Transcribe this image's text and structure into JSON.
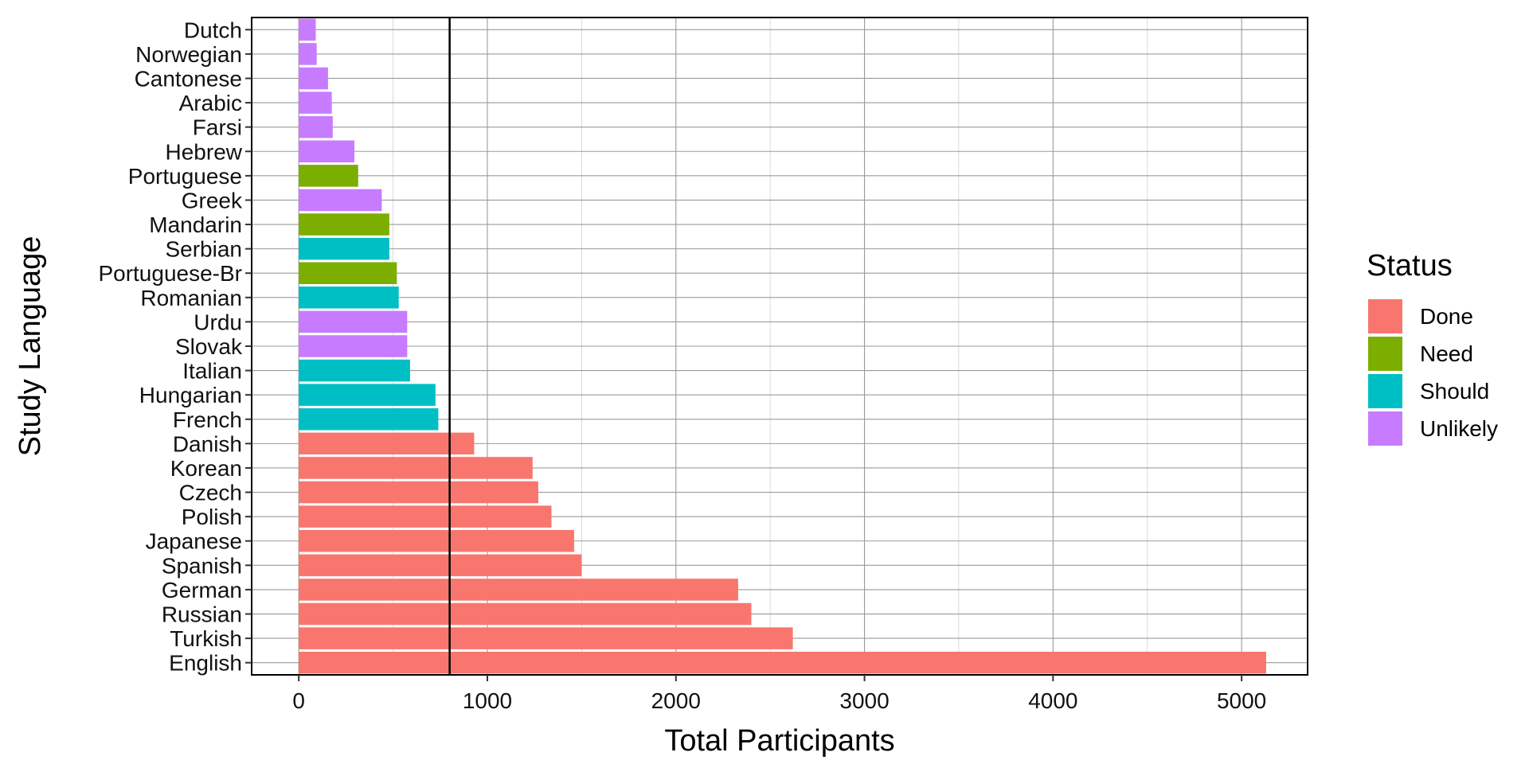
{
  "chart_data": {
    "type": "bar",
    "orientation": "horizontal",
    "xlabel": "Total Participants",
    "ylabel": "Study Language",
    "xlim": [
      -250,
      5350
    ],
    "xticks": [
      0,
      1000,
      2000,
      3000,
      4000,
      5000
    ],
    "reference_line_x": 800,
    "grid": true,
    "legend": {
      "title": "Status",
      "position": "right",
      "entries": [
        {
          "name": "Done",
          "color": "#F8766D"
        },
        {
          "name": "Need",
          "color": "#7CAE00"
        },
        {
          "name": "Should",
          "color": "#00BFC4"
        },
        {
          "name": "Unlikely",
          "color": "#C77CFF"
        }
      ]
    },
    "categories": [
      "Dutch",
      "Norwegian",
      "Cantonese",
      "Arabic",
      "Farsi",
      "Hebrew",
      "Portuguese",
      "Greek",
      "Mandarin",
      "Serbian",
      "Portuguese-Br",
      "Romanian",
      "Urdu",
      "Slovak",
      "Italian",
      "Hungarian",
      "French",
      "Danish",
      "Korean",
      "Czech",
      "Polish",
      "Japanese",
      "Spanish",
      "German",
      "Russian",
      "Turkish",
      "English"
    ],
    "values": [
      90,
      95,
      155,
      175,
      180,
      295,
      315,
      440,
      480,
      480,
      520,
      530,
      575,
      575,
      590,
      725,
      740,
      930,
      1240,
      1270,
      1340,
      1460,
      1500,
      2330,
      2400,
      2620,
      5130
    ],
    "status": [
      "Unlikely",
      "Unlikely",
      "Unlikely",
      "Unlikely",
      "Unlikely",
      "Unlikely",
      "Need",
      "Unlikely",
      "Need",
      "Should",
      "Need",
      "Should",
      "Unlikely",
      "Unlikely",
      "Should",
      "Should",
      "Should",
      "Done",
      "Done",
      "Done",
      "Done",
      "Done",
      "Done",
      "Done",
      "Done",
      "Done",
      "Done"
    ]
  }
}
